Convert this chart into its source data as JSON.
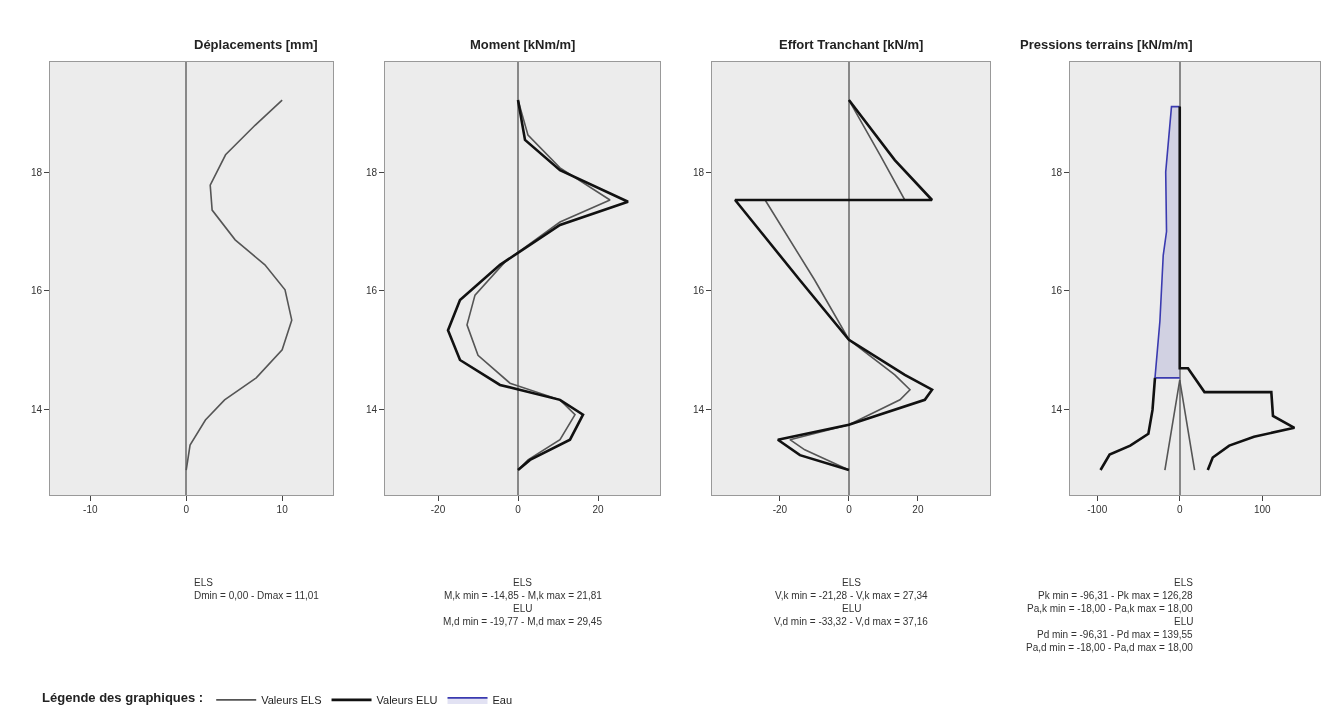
{
  "chart_data": [
    {
      "type": "line",
      "title": "Déplacements [mm]",
      "xlim": [
        -14.2,
        15.3
      ],
      "xticks": [
        -10,
        0,
        10
      ],
      "ylim": [
        12.57,
        19.85
      ],
      "yticks": [
        14,
        16,
        18
      ],
      "legend": "bottom",
      "legend_title": "Légende des graphiques :",
      "annotations": [
        "ELS",
        "Dmin = 0,00 - Dmax = 11,01"
      ],
      "series": [
        {
          "name": "Valeurs ELS",
          "color": "#555555",
          "x": [
            10.0,
            7.2,
            4.1,
            2.5,
            2.7,
            5.1,
            8.2,
            10.3,
            11.0,
            10.0,
            7.3,
            4.0,
            2.0,
            0.4,
            0.0
          ],
          "values": [
            19.21,
            18.79,
            18.29,
            17.78,
            17.36,
            16.86,
            16.44,
            16.02,
            15.51,
            15.01,
            14.54,
            14.17,
            13.83,
            13.41,
            12.99
          ]
        }
      ]
    },
    {
      "type": "line",
      "title": "Moment [kNm/m]",
      "xlim": [
        -33.25,
        35.5
      ],
      "xticks": [
        -20,
        0,
        20
      ],
      "ylim": [
        12.57,
        19.85
      ],
      "yticks": [
        14,
        16,
        18
      ],
      "legend": "bottom",
      "annotations": [
        "ELS",
        "M,k min = -14,85 - M,k max = 21,81",
        "ELU",
        "M,d min = -19,77 - M,d max = 29,45"
      ],
      "series": [
        {
          "name": "Valeurs ELS",
          "color": "#555555",
          "x": [
            0,
            2.5,
            10.5,
            23,
            10.5,
            -3.25,
            -10.75,
            -12.75,
            -10,
            -2,
            10.5,
            14.25,
            10.5,
            2.5,
            0
          ],
          "values": [
            19.21,
            18.62,
            18.07,
            17.53,
            17.16,
            16.49,
            15.93,
            15.43,
            14.92,
            14.45,
            14.17,
            13.92,
            13.5,
            13.16,
            12.99
          ]
        },
        {
          "name": "Valeurs ELU",
          "color": "#111111",
          "x": [
            0,
            1.75,
            10.5,
            27.5,
            10.5,
            -4.5,
            -14.5,
            -17.5,
            -14.5,
            -4.5,
            10.5,
            16.25,
            13,
            3,
            0
          ],
          "values": [
            19.21,
            18.54,
            18.03,
            17.5,
            17.11,
            16.44,
            15.85,
            15.34,
            14.84,
            14.42,
            14.17,
            13.92,
            13.5,
            13.16,
            12.99
          ]
        }
      ]
    },
    {
      "type": "line",
      "title": "Effort Tranchant [kN/m]",
      "xlim": [
        -39.7,
        40.9
      ],
      "xticks": [
        -20,
        0,
        20
      ],
      "ylim": [
        12.57,
        19.85
      ],
      "yticks": [
        14,
        16,
        18
      ],
      "legend": "bottom",
      "annotations": [
        "ELS",
        "V,k min = -21,28 - V,k max = 27,34",
        "ELU",
        "V,d min = -33,32 - V,d max = 37,16"
      ],
      "series": [
        {
          "name": "Valeurs ELS",
          "color": "#555555",
          "x": [
            0,
            9.0,
            16.2,
            -24.3,
            -9.9,
            0,
            13.3,
            17.7,
            14.8,
            0,
            -17.1,
            -12.8,
            0
          ],
          "values": [
            19.21,
            18.29,
            17.53,
            17.53,
            16.18,
            15.18,
            14.59,
            14.34,
            14.17,
            13.75,
            13.5,
            13.33,
            12.99
          ]
        },
        {
          "name": "Valeurs ELU",
          "color": "#111111",
          "x": [
            0,
            13.3,
            24.1,
            -33.0,
            -14.2,
            0,
            16.2,
            24.1,
            22.0,
            0,
            -20.6,
            -14.2,
            0
          ],
          "values": [
            19.21,
            18.2,
            17.53,
            17.53,
            16.18,
            15.18,
            14.59,
            14.34,
            14.17,
            13.75,
            13.5,
            13.24,
            12.99
          ]
        }
      ]
    },
    {
      "type": "line",
      "title": "Pressions terrains [kN/m/m]",
      "xlim": [
        -133,
        170
      ],
      "xticks": [
        -100,
        0,
        100
      ],
      "ylim": [
        12.57,
        19.85
      ],
      "yticks": [
        14,
        16,
        18
      ],
      "legend": "bottom",
      "annotations": [
        "ELS",
        "Pk min = -96,31 - Pk max = 126,28",
        "Pa,k min = -18,00 - Pa,k max = 18,00",
        "ELU",
        "Pd min = -96,31 - Pd max = 139,55",
        "Pa,d min = -18,00 - Pa,d max = 18,00"
      ],
      "series": [
        {
          "name": "Eau",
          "type": "area",
          "color": "#3a3ab0",
          "x": [
            0,
            -10,
            -17,
            -16,
            -20,
            -24,
            -30,
            0
          ],
          "values": [
            19.1,
            19.1,
            18.0,
            17.0,
            16.6,
            15.5,
            14.54,
            14.54
          ]
        },
        {
          "name": "Valeurs ELU",
          "color": "#111111",
          "x": [
            -30,
            -33,
            -38,
            -60,
            -85,
            -96
          ],
          "values": [
            14.54,
            14.0,
            13.6,
            13.4,
            13.25,
            12.99
          ]
        },
        {
          "name": "Valeurs ELU",
          "color": "#111111",
          "x": [
            0,
            0,
            10,
            30,
            111,
            113,
            139,
            90,
            60,
            40,
            34
          ],
          "values": [
            19.1,
            14.7,
            14.7,
            14.3,
            14.3,
            13.9,
            13.7,
            13.55,
            13.4,
            13.2,
            12.99
          ]
        },
        {
          "name": "Valeurs ELS",
          "color": "#555555",
          "x": [
            -18,
            0,
            18
          ],
          "values": [
            12.99,
            14.5,
            12.99
          ]
        }
      ]
    }
  ]
}
